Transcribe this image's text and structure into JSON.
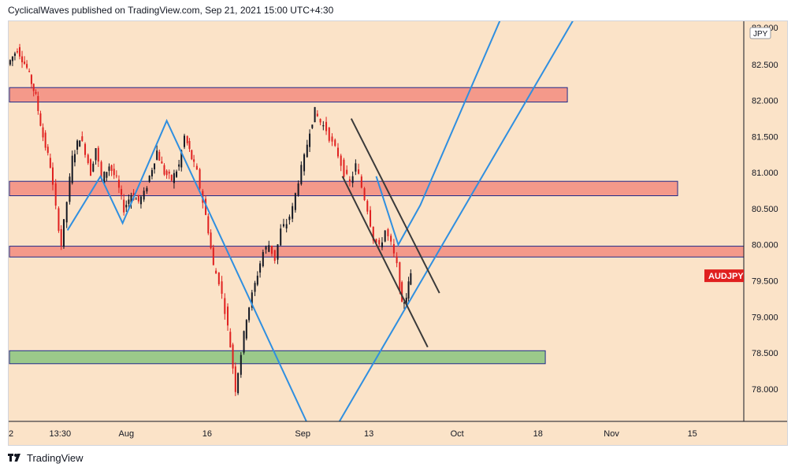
{
  "header": {
    "publisher_line": "CyclicalWaves published on TradingView.com, Sep 21, 2021 15:00 UTC+4:30"
  },
  "footer": {
    "brand": "TradingView"
  },
  "colors": {
    "background": "#fbe3c8",
    "zone_red_fill": "#f4998a",
    "zone_red_border": "#1f2a8a",
    "zone_green_fill": "#9bc98a",
    "zone_green_border": "#1f2a8a",
    "trend_line": "#2f8fe0",
    "channel_line": "#3a3a3a",
    "candle_up": "#131722",
    "candle_down": "#e0201f",
    "symbol_label_bg": "#e0201f"
  },
  "chart_data": {
    "type": "candlestick",
    "symbol": "AUDJPY",
    "currency": "JPY",
    "y_axis": {
      "ticks": [
        78.0,
        78.5,
        79.0,
        79.5,
        80.0,
        80.5,
        81.0,
        81.5,
        82.0,
        82.5
      ],
      "tick_labels": [
        "78.000",
        "78.500",
        "79.000",
        "79.500",
        "80.000",
        "80.500",
        "81.000",
        "81.500",
        "82.000",
        "82.500"
      ],
      "partial_top_label": "83.000",
      "range": [
        77.55,
        83.1
      ]
    },
    "x_axis": {
      "range": [
        0,
        100
      ],
      "ticks": [
        {
          "x": 0,
          "label": "2"
        },
        {
          "x": 7,
          "label": "13:30"
        },
        {
          "x": 16,
          "label": "Aug"
        },
        {
          "x": 27,
          "label": "16"
        },
        {
          "x": 40,
          "label": "Sep"
        },
        {
          "x": 49,
          "label": "13"
        },
        {
          "x": 61,
          "label": "Oct"
        },
        {
          "x": 72,
          "label": "18"
        },
        {
          "x": 82,
          "label": "Nov"
        },
        {
          "x": 93,
          "label": "15"
        }
      ]
    },
    "zones": [
      {
        "type": "resistance",
        "x0": 0,
        "x1": 76,
        "y_low": 81.98,
        "y_high": 82.18
      },
      {
        "type": "resistance",
        "x0": 0,
        "x1": 91,
        "y_low": 80.68,
        "y_high": 80.88
      },
      {
        "type": "resistance",
        "x0": 0,
        "x1": 100,
        "y_low": 79.83,
        "y_high": 79.98
      },
      {
        "type": "support",
        "x0": 0,
        "x1": 73,
        "y_low": 78.35,
        "y_high": 78.53
      }
    ],
    "trend_lines": [
      {
        "points": [
          [
            8,
            80.2
          ],
          [
            12.5,
            80.95
          ],
          [
            15.5,
            80.3
          ],
          [
            21.5,
            81.72
          ],
          [
            40.5,
            77.55
          ]
        ]
      },
      {
        "points": [
          [
            45,
            77.55
          ],
          [
            77,
            83.15
          ]
        ]
      },
      {
        "points": [
          [
            50,
            80.95
          ],
          [
            53,
            80.0
          ],
          [
            56,
            80.55
          ],
          [
            67,
            83.15
          ]
        ]
      }
    ],
    "channel_lines": [
      {
        "points": [
          [
            46.6,
            81.75
          ],
          [
            58.6,
            79.33
          ]
        ]
      },
      {
        "points": [
          [
            45.4,
            80.95
          ],
          [
            57.0,
            78.58
          ]
        ]
      }
    ],
    "price_label": {
      "symbol": "AUDJPY",
      "price": 79.57
    }
  }
}
